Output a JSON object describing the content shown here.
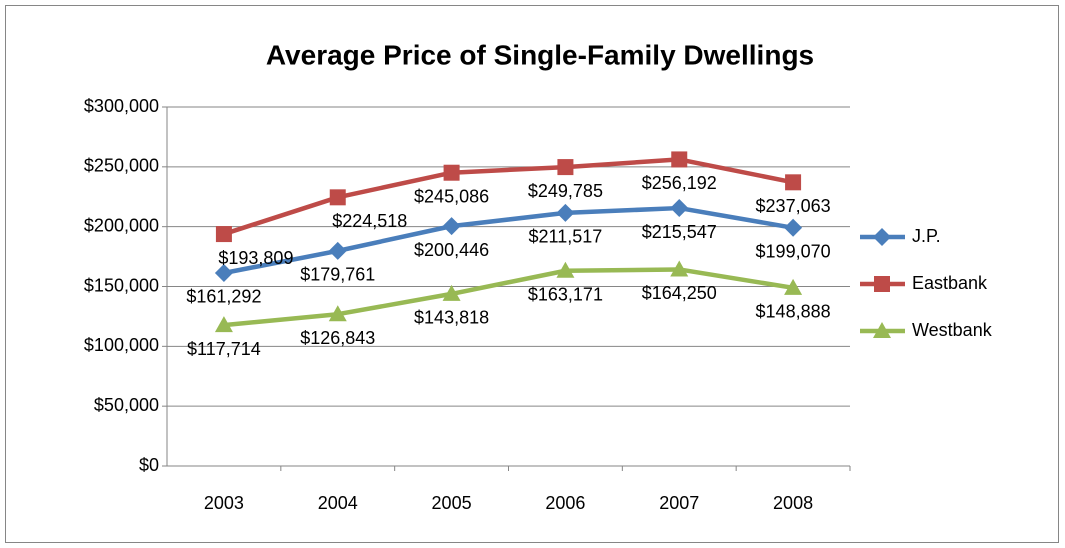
{
  "chart_data": {
    "type": "line",
    "title": "Average Price of Single-Family Dwellings",
    "categories": [
      "2003",
      "2004",
      "2005",
      "2006",
      "2007",
      "2008"
    ],
    "series": [
      {
        "name": "J.P.",
        "color": "#4a7ebb",
        "marker": "diamond",
        "values": [
          161292,
          179761,
          200446,
          211517,
          215547,
          199070
        ],
        "value_labels": [
          "$161,292",
          "$179,761",
          "$200,446",
          "$211,517",
          "$215,547",
          "$199,070"
        ]
      },
      {
        "name": "Eastbank",
        "color": "#be4b48",
        "marker": "square",
        "values": [
          193809,
          224518,
          245086,
          249785,
          256192,
          237063
        ],
        "value_labels": [
          "$193,809",
          "$224,518",
          "$245,086",
          "$249,785",
          "$256,192",
          "$237,063"
        ]
      },
      {
        "name": "Westbank",
        "color": "#98b954",
        "marker": "triangle",
        "values": [
          117714,
          126843,
          143818,
          163171,
          164250,
          148888
        ],
        "value_labels": [
          "$117,714",
          "$126,843",
          "$143,818",
          "$163,171",
          "$164,250",
          "$148,888"
        ]
      }
    ],
    "ylim": [
      0,
      300000
    ],
    "yticks": [
      {
        "value": 0,
        "label": "$0"
      },
      {
        "value": 50000,
        "label": "$50,000"
      },
      {
        "value": 100000,
        "label": "$100,000"
      },
      {
        "value": 150000,
        "label": "$150,000"
      },
      {
        "value": 200000,
        "label": "$200,000"
      },
      {
        "value": 250000,
        "label": "$250,000"
      },
      {
        "value": 300000,
        "label": "$300,000"
      }
    ],
    "grid": true,
    "legend": "right"
  }
}
